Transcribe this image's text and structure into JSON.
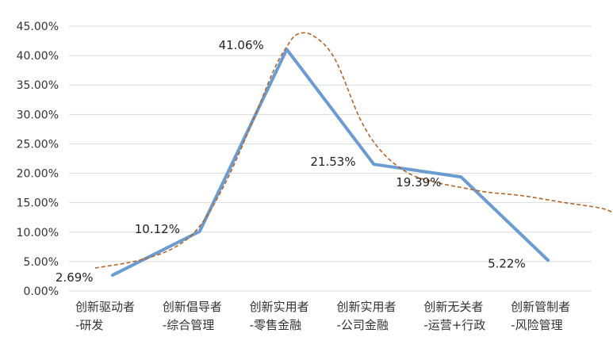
{
  "chart_data": {
    "type": "line",
    "title": "",
    "xlabel": "",
    "ylabel": "",
    "ylim": [
      0,
      45
    ],
    "y_tick_step": 5,
    "y_tick_labels": [
      "0.00%",
      "5.00%",
      "10.00%",
      "15.00%",
      "20.00%",
      "25.00%",
      "30.00%",
      "35.00%",
      "40.00%",
      "45.00%"
    ],
    "grid": true,
    "legend": "none",
    "categories": [
      [
        "创新驱动者",
        "-研发"
      ],
      [
        "创新倡导者",
        "-综合管理"
      ],
      [
        "创新实用者",
        "-零售金融"
      ],
      [
        "创新实用者",
        "-公司金融"
      ],
      [
        "创新无关者",
        "-运营+行政"
      ],
      [
        "创新管制者",
        "-风险管理"
      ]
    ],
    "series": [
      {
        "style": "solid",
        "color": "#6a9bd1",
        "values": [
          2.69,
          10.12,
          41.06,
          21.53,
          19.39,
          5.22
        ],
        "data_labels": [
          "2.69%",
          "10.12%",
          "41.06%",
          "21.53%",
          "19.39%",
          "5.22%"
        ]
      },
      {
        "style": "dashed",
        "color": "#b5652a",
        "points": [
          [
            -0.2,
            3.9
          ],
          [
            0.3,
            5.2
          ],
          [
            0.7,
            7.3
          ],
          [
            1.0,
            11.0
          ],
          [
            1.3,
            18.5
          ],
          [
            1.6,
            28.5
          ],
          [
            1.85,
            37.5
          ],
          [
            2.0,
            41.5
          ],
          [
            2.12,
            43.6
          ],
          [
            2.3,
            43.4
          ],
          [
            2.55,
            39.5
          ],
          [
            2.85,
            29.0
          ],
          [
            3.1,
            23.5
          ],
          [
            3.4,
            20.0
          ],
          [
            3.7,
            18.5
          ],
          [
            4.0,
            17.6
          ],
          [
            4.3,
            16.8
          ],
          [
            4.7,
            16.2
          ],
          [
            5.2,
            15.0
          ],
          [
            5.6,
            14.1
          ],
          [
            5.75,
            13.3
          ]
        ]
      }
    ]
  }
}
